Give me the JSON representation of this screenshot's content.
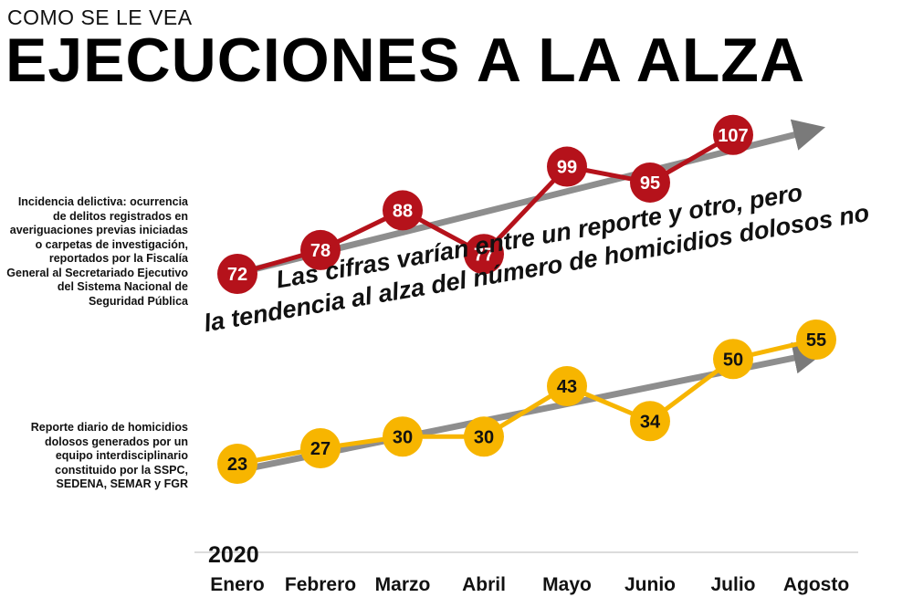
{
  "header": {
    "kicker": "COMO SE LE VEA",
    "title": "EJECUCIONES A LA ALZA"
  },
  "notes": {
    "incidencia": "Incidencia delictiva: ocurrencia de delitos registrados en averiguaciones previas iniciadas o carpetas de investigación, reportados por la Fiscalía General al Secretariado Ejecutivo del Sistema Nacional de Seguridad Pública",
    "reporte_diario": "Reporte diario de homicidios dolosos generados por un equipo interdisciplinario constituido por la SSPC, SEDENA, SEMAR y FGR"
  },
  "callout": {
    "line1": "Las cifras varían entre un reporte y otro, pero",
    "line2": "la tendencia al alza del número de homicidios dolosos no"
  },
  "colors": {
    "red_series": "#b5121b",
    "yellow_series": "#f7b500",
    "trend_arrow": "#7a7a7a"
  },
  "chart_data": {
    "type": "line",
    "year_label": "2020",
    "categories": [
      "Enero",
      "Febrero",
      "Marzo",
      "Abril",
      "Mayo",
      "Junio",
      "Julio",
      "Agosto"
    ],
    "series": [
      {
        "key": "incidencia",
        "values": [
          72,
          78,
          88,
          77,
          99,
          95,
          107,
          null
        ],
        "color": "#b5121b"
      },
      {
        "key": "reporte_diario",
        "values": [
          23,
          27,
          30,
          30,
          43,
          34,
          50,
          55
        ],
        "color": "#f7b500"
      }
    ],
    "trend_arrows": [
      "up",
      "up"
    ],
    "grid": false,
    "legend": "none"
  }
}
